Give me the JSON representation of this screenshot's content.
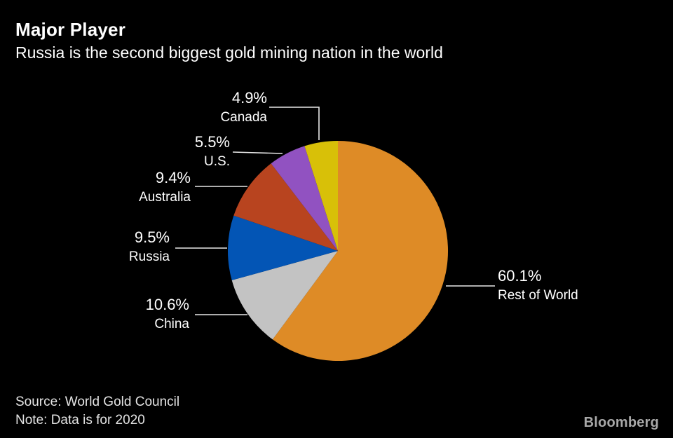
{
  "header": {
    "title": "Major Player",
    "subtitle": "Russia is the second biggest gold mining nation in the world"
  },
  "chart_data": {
    "type": "pie",
    "title": "Major Player",
    "subtitle": "Russia is the second biggest gold mining nation in the world",
    "unit": "%",
    "start_at": "12-o'clock",
    "direction": "clockwise",
    "legend": "none",
    "label_style": "callout-with-leader-lines",
    "background_color": "#000000",
    "leader_line_color": "#e8e8e8",
    "slices": [
      {
        "label": "Rest of World",
        "value": 60.1,
        "pct_label": "60.1%",
        "color": "#de8b26"
      },
      {
        "label": "China",
        "value": 10.6,
        "pct_label": "10.6%",
        "color": "#c3c3c3"
      },
      {
        "label": "Russia",
        "value": 9.5,
        "pct_label": "9.5%",
        "color": "#0355b5"
      },
      {
        "label": "Australia",
        "value": 9.4,
        "pct_label": "9.4%",
        "color": "#b8441f"
      },
      {
        "label": "U.S.",
        "value": 5.5,
        "pct_label": "5.5%",
        "color": "#9152c1"
      },
      {
        "label": "Canada",
        "value": 4.9,
        "pct_label": "4.9%",
        "color": "#d8c008"
      }
    ]
  },
  "footer": {
    "source": "Source: World Gold Council",
    "note": "Note: Data is for 2020",
    "brand": "Bloomberg"
  }
}
